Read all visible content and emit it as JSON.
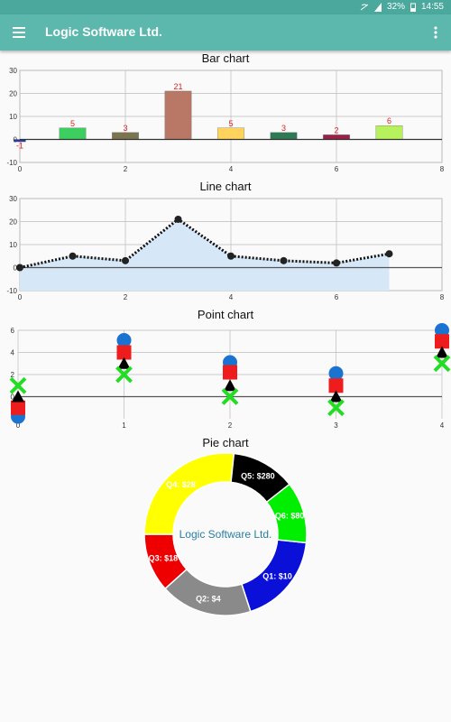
{
  "status": {
    "battery": "32%",
    "time": "14:55"
  },
  "appbar": {
    "title": "Logic Software Ltd.",
    "menu_icon": "hamburger-menu-icon",
    "more_icon": "more-vert-icon"
  },
  "colors": {
    "statusbar": "#4aa89d",
    "appbar": "#5cb8ad"
  },
  "charts": {
    "bar": {
      "title": "Bar chart",
      "chart_data": {
        "type": "bar",
        "x": [
          0,
          1,
          2,
          3,
          4,
          5,
          6,
          7
        ],
        "values": [
          -1,
          5,
          3,
          21,
          5,
          3,
          2,
          6
        ],
        "labels": [
          "-1",
          "5",
          "3",
          "21",
          "5",
          "3",
          "2",
          "6"
        ],
        "colors": [
          "#2a39a8",
          "#3ccf5f",
          "#7a7550",
          "#b87865",
          "#ffd35c",
          "#2e7a55",
          "#9c2048",
          "#b7f25c"
        ],
        "xlim": [
          0,
          8
        ],
        "ylim": [
          -10,
          30
        ],
        "xticks": [
          "0",
          "2",
          "4",
          "6",
          "8"
        ],
        "yticks": [
          "-10",
          "0",
          "10",
          "20",
          "30"
        ],
        "grid": true
      }
    },
    "line": {
      "title": "Line chart",
      "chart_data": {
        "type": "area",
        "x": [
          0,
          1,
          2,
          3,
          4,
          5,
          6,
          7
        ],
        "values": [
          0,
          5,
          3,
          21,
          5,
          3,
          2,
          6
        ],
        "fill": "#d6e7f8",
        "xlim": [
          0,
          8
        ],
        "ylim": [
          -10,
          30
        ],
        "xticks": [
          "0",
          "2",
          "4",
          "6",
          "8"
        ],
        "yticks": [
          "-10",
          "0",
          "10",
          "20",
          "30"
        ],
        "grid": true
      }
    },
    "point": {
      "title": "Point chart",
      "chart_data": {
        "type": "scatter",
        "categories": [
          "0",
          "1",
          "2",
          "3",
          "4"
        ],
        "ylim": [
          -2,
          6
        ],
        "yticks": [
          "0",
          "2",
          "4",
          "6"
        ],
        "grid": true,
        "series": [
          {
            "shape": "circle",
            "color": "#1a73d1",
            "values": [
              -1.8,
              5.1,
              3.1,
              2.1,
              6
            ]
          },
          {
            "shape": "square",
            "color": "#ee1c1c",
            "values": [
              -1,
              4,
              2.2,
              1,
              5
            ]
          },
          {
            "shape": "triangle",
            "color": "#000000",
            "values": [
              0,
              3,
              1,
              0,
              4
            ]
          },
          {
            "shape": "cross",
            "color": "#22dd22",
            "values": [
              1,
              2,
              0,
              -1,
              3
            ]
          }
        ]
      }
    },
    "pie": {
      "title": "Pie chart",
      "center_text": "Logic Software Ltd.",
      "chart_data": {
        "type": "pie",
        "slices": [
          {
            "label": "Q1: $10",
            "value": 10,
            "color": "#0a10d8"
          },
          {
            "label": "Q2: $4",
            "value": 4,
            "color": "#8a8a8a"
          },
          {
            "label": "Q3: $18",
            "value": 18,
            "color": "#ee0000"
          },
          {
            "label": "Q4: $28",
            "value": 28,
            "color": "#ffff00"
          },
          {
            "label": "Q5: $280",
            "value": 280,
            "color": "#000000"
          },
          {
            "label": "Q6: $80",
            "value": 80,
            "color": "#00ee00"
          }
        ]
      }
    }
  }
}
